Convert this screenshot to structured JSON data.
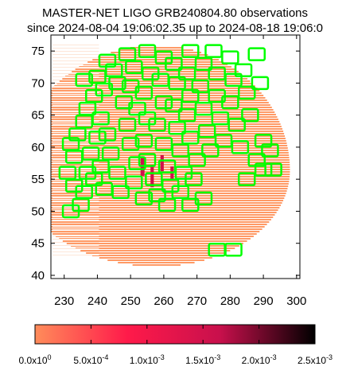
{
  "chart_data": {
    "type": "scatter",
    "title": "MASTER-NET LIGO GRB240804.80 observations",
    "subtitle": "since 2024-08-04 19:06:02.35 up to 2024-08-18 19:06:0",
    "xlabel": "",
    "ylabel": "",
    "xlim": [
      226,
      301
    ],
    "ylim": [
      39.5,
      77.5
    ],
    "x_ticks": [
      230,
      240,
      250,
      260,
      270,
      280,
      290,
      300
    ],
    "y_ticks": [
      40,
      45,
      50,
      55,
      60,
      65,
      70,
      75
    ],
    "grid": false,
    "colorbar": {
      "min": 0,
      "max": 0.0025,
      "colors": [
        "#ff8c5a",
        "#ff1a4a",
        "#c8104c",
        "#000000"
      ],
      "ticks": [
        {
          "value": 0,
          "mantissa": "0.0x10",
          "exponent": "0"
        },
        {
          "value": 0.0005,
          "mantissa": "5.0x10",
          "exponent": "-4"
        },
        {
          "value": 0.001,
          "mantissa": "1.0x10",
          "exponent": "-3"
        },
        {
          "value": 0.0015,
          "mantissa": "1.5x10",
          "exponent": "-3"
        },
        {
          "value": 0.002,
          "mantissa": "2.0x10",
          "exponent": "-3"
        },
        {
          "value": 0.0025,
          "mantissa": "2.5x10",
          "exponent": "-3"
        }
      ]
    },
    "probability_region": {
      "x_range": [
        229,
        298
      ],
      "y_range": [
        41.5,
        76
      ],
      "peak_ra": 256,
      "peak_dec": 58,
      "color_low": "#ff9a66",
      "color_faint": "#fde6d8",
      "color_high": "#d0104c"
    },
    "fields_color": "#00ff00",
    "fields": [
      {
        "ra": 232,
        "dec": 60.5
      },
      {
        "ra": 233,
        "dec": 58.5
      },
      {
        "ra": 231,
        "dec": 56
      },
      {
        "ra": 233,
        "dec": 54
      },
      {
        "ra": 235,
        "dec": 51
      },
      {
        "ra": 232,
        "dec": 50
      },
      {
        "ra": 236,
        "dec": 53
      },
      {
        "ra": 237,
        "dec": 56
      },
      {
        "ra": 239,
        "dec": 55
      },
      {
        "ra": 238,
        "dec": 59
      },
      {
        "ra": 240,
        "dec": 61.5
      },
      {
        "ra": 241,
        "dec": 57
      },
      {
        "ra": 242,
        "dec": 53.5
      },
      {
        "ra": 234,
        "dec": 62
      },
      {
        "ra": 236,
        "dec": 64
      },
      {
        "ra": 237,
        "dec": 66
      },
      {
        "ra": 239,
        "dec": 68
      },
      {
        "ra": 236,
        "dec": 70.5
      },
      {
        "ra": 240,
        "dec": 71
      },
      {
        "ra": 243,
        "dec": 73.5
      },
      {
        "ra": 245,
        "dec": 72
      },
      {
        "ra": 242,
        "dec": 69
      },
      {
        "ra": 241,
        "dec": 64.5
      },
      {
        "ra": 243,
        "dec": 62
      },
      {
        "ra": 244,
        "dec": 59
      },
      {
        "ra": 246,
        "dec": 56
      },
      {
        "ra": 247,
        "dec": 53
      },
      {
        "ra": 248,
        "dec": 67
      },
      {
        "ra": 246,
        "dec": 70
      },
      {
        "ra": 249,
        "dec": 74.5
      },
      {
        "ra": 251,
        "dec": 72.5
      },
      {
        "ra": 250,
        "dec": 69.5
      },
      {
        "ra": 252,
        "dec": 66
      },
      {
        "ra": 249,
        "dec": 63.5
      },
      {
        "ra": 250,
        "dec": 60.5
      },
      {
        "ra": 252,
        "dec": 57.5
      },
      {
        "ra": 251,
        "dec": 54.5
      },
      {
        "ra": 254,
        "dec": 52
      },
      {
        "ra": 255,
        "dec": 75
      },
      {
        "ra": 256,
        "dec": 71.5
      },
      {
        "ra": 254,
        "dec": 68.5
      },
      {
        "ra": 255,
        "dec": 64.5
      },
      {
        "ra": 254,
        "dec": 61
      },
      {
        "ra": 255,
        "dec": 58
      },
      {
        "ra": 257,
        "dec": 55
      },
      {
        "ra": 258,
        "dec": 52.5
      },
      {
        "ra": 260,
        "dec": 74
      },
      {
        "ra": 259,
        "dec": 70.5
      },
      {
        "ra": 260,
        "dec": 67
      },
      {
        "ra": 258,
        "dec": 63.5
      },
      {
        "ra": 260,
        "dec": 60.5
      },
      {
        "ra": 261,
        "dec": 57
      },
      {
        "ra": 262,
        "dec": 54
      },
      {
        "ra": 261,
        "dec": 51
      },
      {
        "ra": 263,
        "dec": 73
      },
      {
        "ra": 264,
        "dec": 70
      },
      {
        "ra": 263,
        "dec": 66.5
      },
      {
        "ra": 264,
        "dec": 63
      },
      {
        "ra": 265,
        "dec": 59.5
      },
      {
        "ra": 266,
        "dec": 56
      },
      {
        "ra": 265,
        "dec": 53
      },
      {
        "ra": 268,
        "dec": 75
      },
      {
        "ra": 267,
        "dec": 71.5
      },
      {
        "ra": 268,
        "dec": 68
      },
      {
        "ra": 267,
        "dec": 65
      },
      {
        "ra": 268,
        "dec": 61.5
      },
      {
        "ra": 270,
        "dec": 58
      },
      {
        "ra": 269,
        "dec": 55
      },
      {
        "ra": 272,
        "dec": 73
      },
      {
        "ra": 271,
        "dec": 69.5
      },
      {
        "ra": 272,
        "dec": 66
      },
      {
        "ra": 273,
        "dec": 62.5
      },
      {
        "ra": 274,
        "dec": 59.5
      },
      {
        "ra": 275,
        "dec": 75
      },
      {
        "ra": 276,
        "dec": 71.5
      },
      {
        "ra": 276,
        "dec": 68
      },
      {
        "ra": 277,
        "dec": 64.5
      },
      {
        "ra": 278,
        "dec": 61
      },
      {
        "ra": 280,
        "dec": 74
      },
      {
        "ra": 281,
        "dec": 70.5
      },
      {
        "ra": 280,
        "dec": 67
      },
      {
        "ra": 282,
        "dec": 63.5
      },
      {
        "ra": 283,
        "dec": 60
      },
      {
        "ra": 284,
        "dec": 72
      },
      {
        "ra": 285,
        "dec": 68.5
      },
      {
        "ra": 288,
        "dec": 74.5
      },
      {
        "ra": 289,
        "dec": 70
      },
      {
        "ra": 286,
        "dec": 65
      },
      {
        "ra": 288,
        "dec": 58
      },
      {
        "ra": 285,
        "dec": 55
      },
      {
        "ra": 290,
        "dec": 61
      },
      {
        "ra": 292,
        "dec": 59.5
      },
      {
        "ra": 293,
        "dec": 56.5
      },
      {
        "ra": 290,
        "dec": 56.5
      },
      {
        "ra": 268,
        "dec": 51
      },
      {
        "ra": 272,
        "dec": 52
      },
      {
        "ra": 276,
        "dec": 44
      },
      {
        "ra": 281,
        "dec": 44
      }
    ]
  }
}
